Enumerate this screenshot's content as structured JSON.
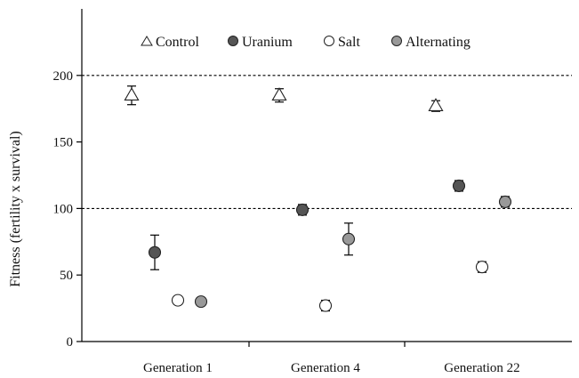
{
  "chart_data": {
    "type": "scatter",
    "title": "",
    "ylabel": "Fitness (fertility x survival)",
    "xlabel": "",
    "ylim": [
      0,
      250
    ],
    "yticks": [
      0,
      50,
      100,
      150,
      200
    ],
    "reference_lines": [
      100,
      200
    ],
    "grid": false,
    "legend_position": "top-center",
    "categories": [
      "Generation 1",
      "Generation 4",
      "Generation 22"
    ],
    "series": [
      {
        "name": "Control",
        "marker": "triangle-open",
        "color": "#ffffff",
        "values": [
          185,
          185,
          177
        ],
        "errors": [
          7,
          5,
          4
        ]
      },
      {
        "name": "Uranium",
        "marker": "circle-filled",
        "color": "#555555",
        "values": [
          67,
          99,
          117
        ],
        "errors": [
          13,
          4,
          4
        ]
      },
      {
        "name": "Salt",
        "marker": "circle-open",
        "color": "#ffffff",
        "values": [
          31,
          27,
          56
        ],
        "errors": [
          3,
          4,
          4
        ]
      },
      {
        "name": "Alternating",
        "marker": "circle-filled",
        "color": "#999999",
        "values": [
          30,
          77,
          105
        ],
        "errors": [
          2,
          12,
          4
        ]
      }
    ]
  }
}
